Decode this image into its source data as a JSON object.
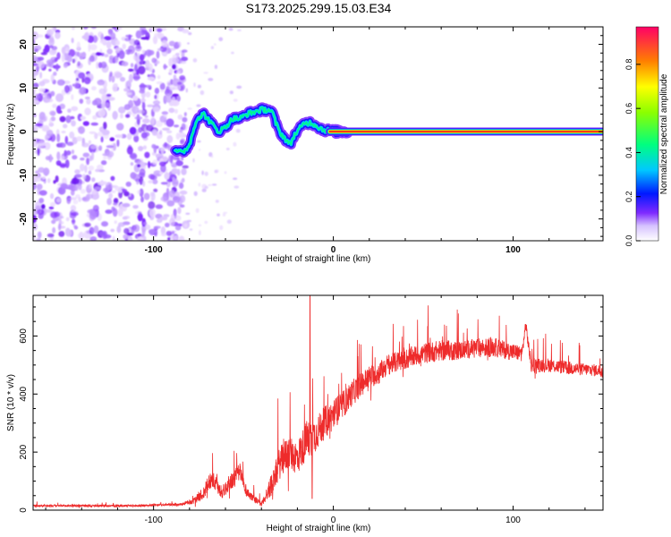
{
  "title": "S173.2025.299.15.03.E34",
  "chart_data": [
    {
      "type": "heatmap",
      "xlabel": "Height of straight line (km)",
      "ylabel": "Frequency (Hz)",
      "xlim": [
        -167,
        150
      ],
      "ylim": [
        -25,
        24
      ],
      "xticks": [
        -100,
        0,
        100
      ],
      "xtick_labels": [
        "-100",
        "0",
        "100"
      ],
      "yticks": [
        -20,
        -10,
        0,
        10,
        20
      ],
      "ytick_labels": [
        "-20",
        "-10",
        "0",
        "10",
        "20"
      ],
      "colorbar": {
        "label": "Normalized spectral amplitude",
        "range": [
          0,
          0.97
        ],
        "ticks": [
          0.0,
          0.2,
          0.4,
          0.6,
          0.8
        ],
        "tick_labels": [
          "0.0",
          "0.2",
          "0.4",
          "0.6",
          "0.8"
        ]
      },
      "features": {
        "noise_region_x": [
          -167,
          -82
        ],
        "wavy_trace": {
          "x": [
            -88,
            -84,
            -80,
            -76,
            -72,
            -68,
            -64,
            -60,
            -56,
            -52,
            -48,
            -44,
            -40,
            -36,
            -34,
            -32,
            -30,
            -28,
            -26,
            -24,
            -22,
            -20,
            -18,
            -16,
            -14,
            -12,
            -10,
            -8,
            -6,
            -4,
            -2,
            0,
            2,
            4,
            6,
            8
          ],
          "y": [
            -4,
            -5,
            -3,
            3,
            4,
            2,
            0,
            1,
            3,
            3,
            4,
            4.5,
            5,
            5,
            4.5,
            2,
            0,
            -1,
            -2,
            -3,
            -1,
            0,
            1,
            2,
            2,
            2,
            1.5,
            1,
            0.5,
            0.3,
            0.2,
            0.1,
            0,
            0,
            0,
            0
          ]
        },
        "carrier": {
          "x_start": 0,
          "x_end": 150,
          "freq_hz": 0,
          "amplitude": 0.97
        }
      }
    },
    {
      "type": "line",
      "xlabel": "Height of straight line (km)",
      "ylabel": "SNR (10 * v/v)",
      "xlim": [
        -167,
        150
      ],
      "ylim": [
        0,
        740
      ],
      "xticks": [
        -100,
        0,
        100
      ],
      "xtick_labels": [
        "-100",
        "0",
        "100"
      ],
      "yticks": [
        0,
        200,
        400,
        600
      ],
      "ytick_labels": [
        "0",
        "200",
        "400",
        "600"
      ],
      "series": [
        {
          "name": "SNR",
          "color": "#ee2b2b",
          "x": [
            -167,
            -140,
            -110,
            -85,
            -78,
            -72,
            -68,
            -62,
            -58,
            -52,
            -48,
            -40,
            -35,
            -30,
            -25,
            -20,
            -15,
            -10,
            -5,
            0,
            5,
            10,
            15,
            20,
            25,
            30,
            40,
            50,
            60,
            70,
            80,
            90,
            100,
            105,
            107,
            110,
            120,
            130,
            140,
            150
          ],
          "baseline": [
            15,
            15,
            15,
            20,
            30,
            60,
            110,
            60,
            90,
            130,
            60,
            20,
            80,
            160,
            200,
            180,
            240,
            260,
            300,
            330,
            360,
            400,
            430,
            460,
            470,
            500,
            520,
            540,
            550,
            550,
            560,
            560,
            545,
            540,
            640,
            500,
            500,
            490,
            485,
            480
          ],
          "spread": [
            12,
            12,
            12,
            15,
            30,
            80,
            110,
            70,
            100,
            110,
            60,
            25,
            120,
            180,
            200,
            200,
            220,
            200,
            190,
            180,
            160,
            150,
            140,
            130,
            130,
            120,
            120,
            120,
            120,
            110,
            110,
            110,
            100,
            90,
            60,
            90,
            80,
            80,
            70,
            70
          ],
          "annotations": {
            "spike_near_x": -13,
            "spike_peak": 740,
            "step_at_x": 107
          }
        }
      ]
    }
  ]
}
